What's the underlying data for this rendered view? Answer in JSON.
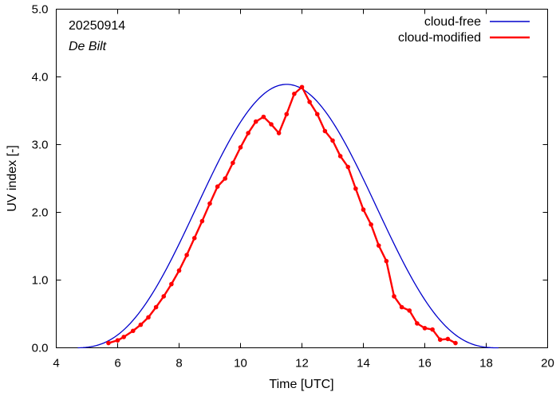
{
  "chart_data": {
    "type": "line",
    "xlabel": "Time  [UTC]",
    "ylabel": "UV index  [-]",
    "xlim": [
      4,
      20
    ],
    "ylim": [
      0,
      5
    ],
    "x_ticks": [
      "4",
      "6",
      "8",
      "10",
      "12",
      "14",
      "16",
      "18",
      "20"
    ],
    "y_ticks": [
      "0.0",
      "1.0",
      "2.0",
      "3.0",
      "4.0",
      "5.0"
    ],
    "annotations": {
      "date": "20250914",
      "location": "De Bilt"
    },
    "legend_position": "top-right",
    "grid": false,
    "series": [
      {
        "name": "cloud-free",
        "color": "#0000cc",
        "style": "line",
        "peak_x": 11.5,
        "peak_y": 3.89,
        "x": [
          4.7,
          5.0,
          5.5,
          6.0,
          6.5,
          7.0,
          7.5,
          8.0,
          8.5,
          9.0,
          9.5,
          10.0,
          10.5,
          11.0,
          11.5,
          12.0,
          12.5,
          13.0,
          13.5,
          14.0,
          14.5,
          15.0,
          15.5,
          16.0,
          16.5,
          17.0,
          17.5,
          18.0,
          18.4
        ],
        "y": [
          0.0,
          0.02,
          0.06,
          0.14,
          0.29,
          0.52,
          0.84,
          1.24,
          1.7,
          2.2,
          2.7,
          3.14,
          3.52,
          3.78,
          3.89,
          3.78,
          3.52,
          3.14,
          2.7,
          2.2,
          1.7,
          1.24,
          0.84,
          0.52,
          0.29,
          0.14,
          0.06,
          0.02,
          0.0
        ]
      },
      {
        "name": "cloud-modified",
        "color": "#ff0000",
        "style": "line-points",
        "x": [
          5.7,
          6.0,
          6.2,
          6.5,
          6.75,
          7.0,
          7.25,
          7.5,
          7.75,
          8.0,
          8.25,
          8.5,
          8.75,
          9.0,
          9.25,
          9.5,
          9.75,
          10.0,
          10.25,
          10.5,
          10.75,
          11.0,
          11.25,
          11.5,
          11.75,
          12.0,
          12.25,
          12.5,
          12.75,
          13.0,
          13.25,
          13.5,
          13.75,
          14.0,
          14.25,
          14.5,
          14.75,
          15.0,
          15.25,
          15.5,
          15.75,
          16.0,
          16.25,
          16.5,
          16.75,
          17.0
        ],
        "y": [
          0.07,
          0.11,
          0.16,
          0.25,
          0.34,
          0.45,
          0.6,
          0.76,
          0.94,
          1.14,
          1.37,
          1.62,
          1.87,
          2.13,
          2.38,
          2.5,
          2.73,
          2.96,
          3.17,
          3.34,
          3.41,
          3.3,
          3.17,
          3.45,
          3.75,
          3.85,
          3.63,
          3.45,
          3.2,
          3.06,
          2.83,
          2.67,
          2.35,
          2.04,
          1.82,
          1.51,
          1.28,
          0.76,
          0.6,
          0.55,
          0.36,
          0.29,
          0.27,
          0.12,
          0.13,
          0.07
        ]
      }
    ]
  }
}
